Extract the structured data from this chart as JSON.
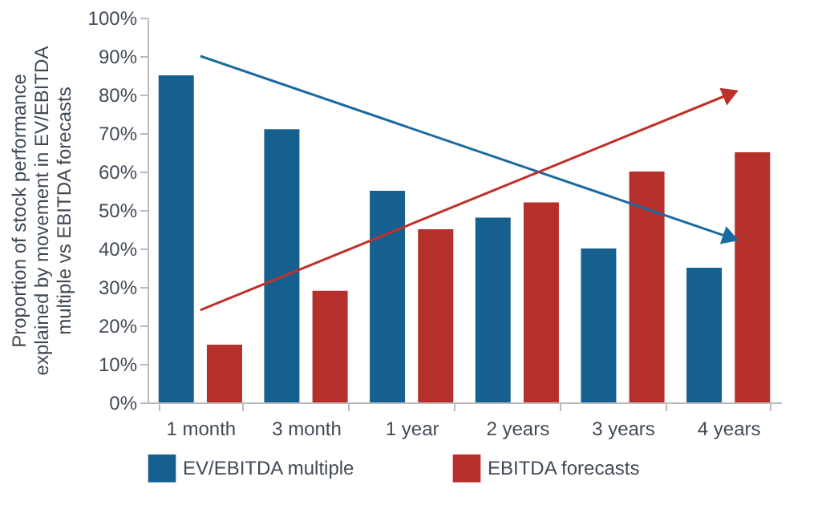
{
  "chart_data": {
    "type": "bar",
    "ylabel": "Proportion of stock performance\nexplained by movement in EV/EBITDA\nmultiple vs EBITDA forecasts",
    "categories": [
      "1 month",
      "3 month",
      "1 year",
      "2 years",
      "3 years",
      "4 years"
    ],
    "series": [
      {
        "name": "EV/EBITDA multiple",
        "color": "#16608f",
        "values": [
          85,
          71,
          55,
          48,
          40,
          35
        ]
      },
      {
        "name": "EBITDA forecasts",
        "color": "#b5302b",
        "values": [
          15,
          29,
          45,
          52,
          60,
          65
        ]
      },
      {
        "type": "line",
        "color": "#1a6aa0",
        "values": [
          90,
          null,
          null,
          null,
          null,
          43
        ]
      },
      {
        "type": "line",
        "color": "#c0302b",
        "values": [
          24,
          null,
          null,
          null,
          null,
          80
        ]
      }
    ],
    "ylim": [
      0,
      100
    ],
    "yticks": [
      {
        "value": 0,
        "label": "0%"
      },
      {
        "value": 10,
        "label": "10%"
      },
      {
        "value": 20,
        "label": "20%"
      },
      {
        "value": 30,
        "label": "30%"
      },
      {
        "value": 40,
        "label": "40%"
      },
      {
        "value": 50,
        "label": "50%"
      },
      {
        "value": 60,
        "label": "60%"
      },
      {
        "value": 70,
        "label": "70%"
      },
      {
        "value": 80,
        "label": "80%"
      },
      {
        "value": 90,
        "label": "90%"
      },
      {
        "value": 100,
        "label": "100%"
      }
    ],
    "grid": false,
    "legend": "bottom"
  }
}
